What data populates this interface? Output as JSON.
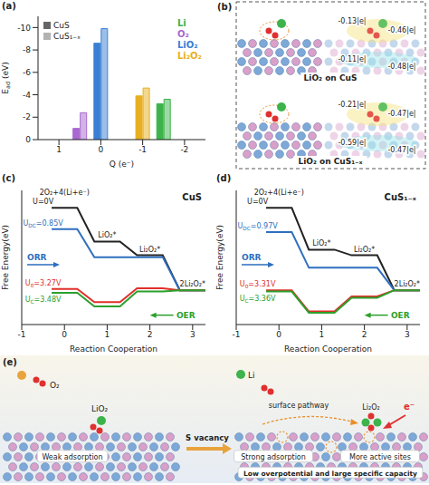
{
  "chart_data": [
    {
      "panel": "(a)",
      "type": "bar",
      "xlabel": "Q (e⁻)",
      "ylabel": "Ead (eV)",
      "categories": [
        "Li",
        "O₂",
        "LiO₂",
        "Li₂O₂"
      ],
      "colors": [
        "#3cb44b",
        "#a868d0",
        "#3a7fd5",
        "#e8b020"
      ],
      "x": [
        -1.5,
        0.5,
        0,
        -1
      ],
      "series": [
        {
          "name": "CuS",
          "values": [
            -3.2,
            -1.0,
            -8.6,
            -3.9
          ]
        },
        {
          "name": "CuS₁₋ₓ",
          "values": [
            -3.6,
            -2.4,
            -9.9,
            -4.6
          ]
        }
      ],
      "xlim": [
        1.5,
        -2.5
      ],
      "xticks": [
        1,
        0,
        -1,
        -2
      ],
      "ylim": [
        0,
        -11
      ],
      "yticks": [
        0,
        -2,
        -4,
        -6,
        -8,
        -10
      ],
      "legend": "top-right"
    },
    {
      "panel": "(c)",
      "type": "line",
      "title": "CuS",
      "xlabel": "Reaction Cooperation",
      "ylabel": "Free Energy(eV)",
      "x": [
        0,
        1,
        2,
        3
      ],
      "categories": [
        "2O₂+4(Li+e⁻)",
        "LiO₂*",
        "Li₂O₂*",
        "2Li₂O₂*"
      ],
      "series": [
        {
          "name": "U=0V",
          "color": "#222222",
          "values": [
            13.2,
            7.8,
            5.6,
            0
          ]
        },
        {
          "name": "UDC=0.85V",
          "color": "#2e6fc0",
          "values": [
            9.8,
            5.3,
            5.3,
            0
          ]
        },
        {
          "name": "U0=3.27V",
          "color": "#e0302a",
          "values": [
            0.2,
            -1.9,
            0.3,
            0
          ]
        },
        {
          "name": "UC=3.48V",
          "color": "#2ca02c",
          "values": [
            -0.4,
            -2.6,
            -0.2,
            0
          ]
        }
      ],
      "annotations": [
        {
          "text": "ORR",
          "color": "#2e6fc0"
        },
        {
          "text": "OER",
          "color": "#2ca02c"
        }
      ],
      "xlim": [
        -1,
        3.3
      ],
      "xticks": [
        -1,
        0,
        1,
        2,
        3
      ],
      "ylim": [
        -5.5,
        16
      ],
      "tick_labels": "x"
    },
    {
      "panel": "(d)",
      "type": "line",
      "title": "CuS₁₋ₓ",
      "xlabel": "Reaction Cooperation",
      "ylabel": "Free Energy(eV)",
      "x": [
        0,
        1,
        2,
        3
      ],
      "categories": [
        "2O₂+4(Li+e⁻)",
        "LiO₂*",
        "Li₂O₂*",
        "2Li₂O₂*"
      ],
      "series": [
        {
          "name": "U=0V",
          "color": "#222222",
          "values": [
            13.2,
            6.5,
            5.6,
            0
          ]
        },
        {
          "name": "UDC=0.97V",
          "color": "#2e6fc0",
          "values": [
            9.3,
            3.6,
            3.6,
            0
          ]
        },
        {
          "name": "U0=3.31V",
          "color": "#e0302a",
          "values": [
            0.0,
            -3.4,
            -1.0,
            0
          ]
        },
        {
          "name": "UC=3.36V",
          "color": "#2ca02c",
          "values": [
            -0.2,
            -3.6,
            -1.2,
            0
          ]
        }
      ],
      "annotations": [
        {
          "text": "ORR",
          "color": "#2e6fc0"
        },
        {
          "text": "OER",
          "color": "#2ca02c"
        }
      ],
      "xlim": [
        -1,
        3.3
      ],
      "xticks": [
        -1,
        0,
        1,
        2,
        3
      ],
      "ylim": [
        -5.5,
        16
      ],
      "tick_labels": "x"
    }
  ],
  "panel_b": {
    "panel": "(b)",
    "structures": [
      {
        "caption": "LiO₂ on CuS",
        "charges": [
          "-0.13|e|",
          "-0.46|e|",
          "-0.11|e|",
          "-0.48|e|"
        ]
      },
      {
        "caption": "LiO₂ on CuS₁₋ₓ",
        "charges": [
          "-0.21|e|",
          "-0.47|e|",
          "-0.59|e|",
          "-0.47|e|"
        ]
      }
    ]
  },
  "panel_e": {
    "panel": "(e)",
    "before": {
      "gas": "O₂",
      "adsorbate": "LiO₂",
      "state": "Weak adsorption"
    },
    "change": "S vacancy",
    "after": {
      "ion": "Li",
      "path": "surface pathway",
      "product": "Li₂O₂",
      "electron": "e⁻",
      "states": [
        "Strong adsorption",
        "More active sites"
      ],
      "outcome": "Low overpotential and large specific capacity"
    }
  }
}
